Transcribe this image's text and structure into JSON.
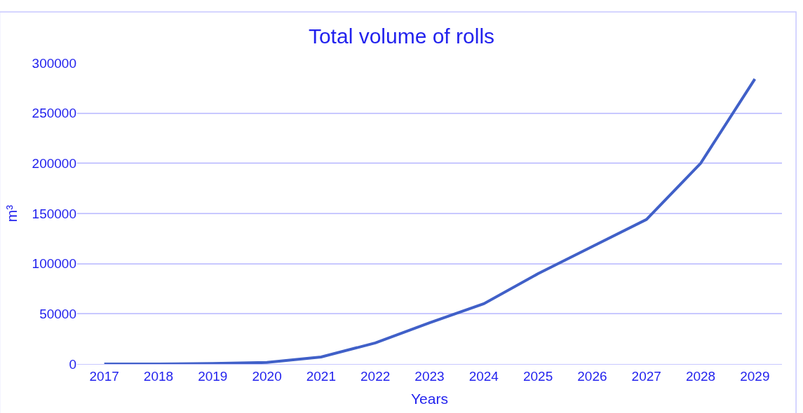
{
  "chart_data": {
    "type": "line",
    "title": "Total volume of rolls",
    "xlabel": "Years",
    "ylabel": "m³",
    "categories": [
      "2017",
      "2018",
      "2019",
      "2020",
      "2021",
      "2022",
      "2023",
      "2024",
      "2025",
      "2026",
      "2027",
      "2028",
      "2029"
    ],
    "series": [
      {
        "color": "#4060c8",
        "values": [
          0,
          0,
          500,
          1500,
          7000,
          21000,
          41000,
          60000,
          90000,
          117000,
          144000,
          200000,
          284000
        ]
      }
    ],
    "ylim": [
      0,
      300000
    ],
    "yticks": [
      0,
      50000,
      100000,
      150000,
      200000,
      250000,
      300000
    ],
    "grid": "y",
    "marker": "none",
    "line_style": "solid"
  }
}
